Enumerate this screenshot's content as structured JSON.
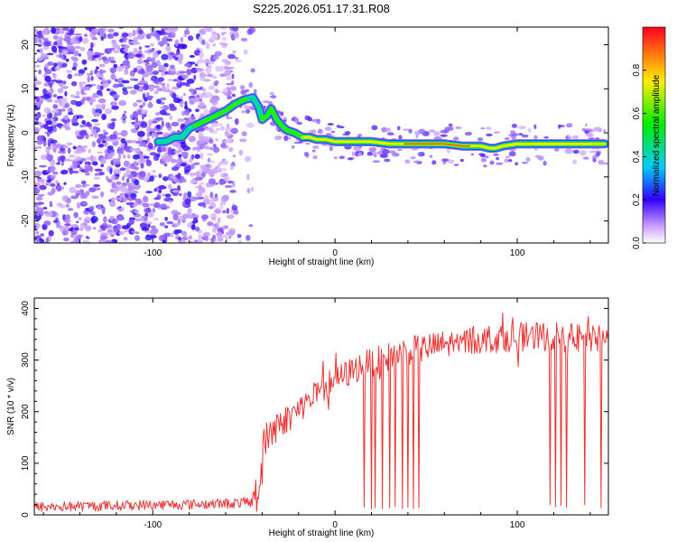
{
  "figure_title": "S225.2026.051.17.31.R08",
  "chart_data": [
    {
      "type": "heatmap",
      "name": "spectrogram",
      "xlabel": "Height of straight line (km)",
      "ylabel": "Frequency (Hz)",
      "xlim": [
        -165,
        150
      ],
      "ylim": [
        -25,
        24
      ],
      "xticks": [
        -100,
        0,
        100
      ],
      "xtick_labels": [
        "-100",
        "0",
        "100"
      ],
      "yticks": [
        -20,
        -10,
        0,
        10,
        20
      ],
      "ytick_labels": [
        "-20",
        "-10",
        "0",
        "10",
        "20"
      ],
      "colorbar": {
        "label": "Normalized spectral amplitude",
        "range": [
          0,
          1
        ],
        "ticks": [
          0.0,
          0.2,
          0.4,
          0.6,
          0.8
        ],
        "tick_labels": [
          "0.0",
          "0.2",
          "0.4",
          "0.6",
          "0.8"
        ]
      },
      "noise_region_x": [
        -165,
        -55
      ],
      "ridge": {
        "x": [
          -97,
          -93,
          -88,
          -84,
          -80,
          -75,
          -70,
          -65,
          -60,
          -55,
          -50,
          -45,
          -42,
          -40,
          -37,
          -35,
          -32,
          -29,
          -26,
          -22,
          -18,
          -14,
          -10,
          -5,
          0,
          5,
          10,
          20,
          30,
          40,
          50,
          60,
          70,
          80,
          85,
          88,
          92,
          100,
          110,
          120,
          130,
          140,
          148
        ],
        "freq": [
          -2,
          -2,
          -1,
          -1,
          1,
          2,
          3,
          4,
          5,
          6.5,
          7.5,
          8,
          6,
          3,
          4,
          5.5,
          3,
          1.5,
          0.5,
          0,
          -1,
          -1,
          -1.5,
          -1.5,
          -2,
          -2,
          -2,
          -2,
          -2.5,
          -2.5,
          -2.5,
          -2.5,
          -3,
          -3,
          -3.5,
          -3.5,
          -3,
          -2.5,
          -2.5,
          -2.5,
          -2.5,
          -2.5,
          -2.5
        ],
        "amplitude": [
          0.5,
          0.45,
          0.5,
          0.55,
          0.55,
          0.6,
          0.6,
          0.62,
          0.65,
          0.7,
          0.6,
          0.5,
          0.55,
          0.6,
          0.62,
          0.6,
          0.6,
          0.65,
          0.7,
          0.7,
          0.75,
          0.8,
          0.8,
          0.85,
          0.8,
          0.85,
          0.9,
          0.85,
          0.85,
          0.95,
          0.95,
          0.95,
          0.95,
          0.9,
          0.85,
          0.8,
          0.85,
          0.9,
          0.9,
          0.9,
          0.9,
          0.9,
          0.9
        ]
      }
    },
    {
      "type": "line",
      "name": "snr",
      "xlabel": "Height of straight line (km)",
      "ylabel": "SNR (10 * v/v)",
      "xlim": [
        -165,
        150
      ],
      "ylim": [
        0,
        420
      ],
      "xticks": [
        -100,
        0,
        100
      ],
      "xtick_labels": [
        "-100",
        "0",
        "100"
      ],
      "yticks": [
        0,
        100,
        200,
        300,
        400
      ],
      "ytick_labels": [
        "0",
        "100",
        "200",
        "300",
        "400"
      ],
      "color": "#ee3333",
      "trend": {
        "x": [
          -165,
          -60,
          -45,
          -42,
          -38,
          -33,
          -25,
          -15,
          -5,
          5,
          15,
          25,
          35,
          45,
          60,
          80,
          100,
          120,
          140,
          150
        ],
        "snr": [
          15,
          22,
          25,
          40,
          150,
          170,
          190,
          220,
          250,
          270,
          290,
          300,
          315,
          320,
          330,
          340,
          345,
          345,
          340,
          340
        ]
      },
      "dropouts": [
        {
          "x": 16,
          "snr": 15
        },
        {
          "x": 20,
          "snr": 12
        },
        {
          "x": 22,
          "snr": 14
        },
        {
          "x": 26,
          "snr": 12
        },
        {
          "x": 30,
          "snr": 14
        },
        {
          "x": 33,
          "snr": 16
        },
        {
          "x": 37,
          "snr": 12
        },
        {
          "x": 40,
          "snr": 15
        },
        {
          "x": 43,
          "snr": 12
        },
        {
          "x": 46,
          "snr": 14
        },
        {
          "x": 118,
          "snr": 20
        },
        {
          "x": 121,
          "snr": 16
        },
        {
          "x": 124,
          "snr": 18
        },
        {
          "x": 127,
          "snr": 15
        },
        {
          "x": 137,
          "snr": 20
        },
        {
          "x": 146,
          "snr": 14
        }
      ]
    }
  ]
}
